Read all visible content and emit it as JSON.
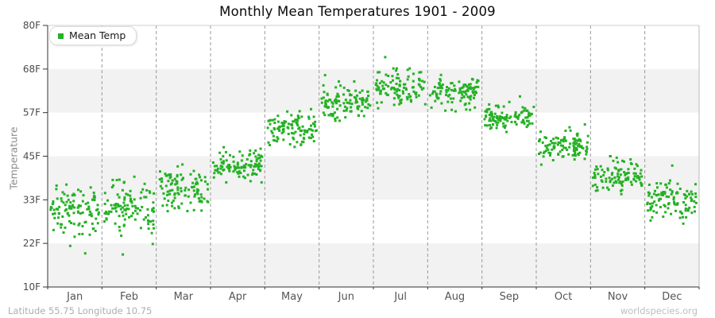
{
  "header": {
    "title": "Monthly Mean Temperatures 1901 - 2009"
  },
  "legend": {
    "label": "Mean Temp",
    "swatch_color": "#25b125"
  },
  "footer": {
    "left": "Latitude 55.75 Longitude 10.75",
    "right": "worldspecies.org"
  },
  "chart_data": {
    "type": "scatter",
    "title": "Monthly Mean Temperatures 1901 - 2009",
    "xlabel": "",
    "ylabel": "Temperature",
    "series_name": "Mean Temp",
    "unit": "F",
    "ylim": [
      10,
      80
    ],
    "y_ticks": [
      {
        "value": 80,
        "label": "80F"
      },
      {
        "value": 68.33,
        "label": "68F"
      },
      {
        "value": 56.67,
        "label": "57F"
      },
      {
        "value": 45,
        "label": "45F"
      },
      {
        "value": 33.33,
        "label": "33F"
      },
      {
        "value": 21.67,
        "label": "22F"
      },
      {
        "value": 10,
        "label": "10F"
      }
    ],
    "x_categories": [
      "Jan",
      "Feb",
      "Mar",
      "Apr",
      "May",
      "Jun",
      "Jul",
      "Aug",
      "Sep",
      "Oct",
      "Nov",
      "Dec"
    ],
    "points_per_month": 109,
    "monthly_distributions_F": [
      {
        "month": "Jan",
        "mean": 30.5,
        "sd": 2.9,
        "min": 22.5,
        "max": 38.0,
        "outliers": [
          19.0,
          21.0
        ]
      },
      {
        "month": "Feb",
        "mean": 31.0,
        "sd": 3.2,
        "min": 21.5,
        "max": 39.5,
        "outliers": [
          18.7
        ]
      },
      {
        "month": "Mar",
        "mean": 35.8,
        "sd": 2.5,
        "min": 26.5,
        "max": 43.5,
        "outliers": []
      },
      {
        "month": "Apr",
        "mean": 42.8,
        "sd": 2.0,
        "min": 38.0,
        "max": 49.0,
        "outliers": []
      },
      {
        "month": "May",
        "mean": 52.5,
        "sd": 2.3,
        "min": 47.0,
        "max": 58.5,
        "outliers": []
      },
      {
        "month": "Jun",
        "mean": 59.5,
        "sd": 2.2,
        "min": 54.5,
        "max": 65.0,
        "outliers": [
          66.7
        ]
      },
      {
        "month": "Jul",
        "mean": 63.0,
        "sd": 2.2,
        "min": 57.5,
        "max": 68.5,
        "outliers": [
          71.5
        ]
      },
      {
        "month": "Aug",
        "mean": 62.3,
        "sd": 2.1,
        "min": 57.0,
        "max": 68.0,
        "outliers": []
      },
      {
        "month": "Sep",
        "mean": 55.3,
        "sd": 1.8,
        "min": 50.0,
        "max": 59.5,
        "outliers": [
          61.0
        ]
      },
      {
        "month": "Oct",
        "mean": 48.0,
        "sd": 2.1,
        "min": 42.0,
        "max": 53.5,
        "outliers": []
      },
      {
        "month": "Nov",
        "mean": 39.8,
        "sd": 2.1,
        "min": 34.0,
        "max": 45.0,
        "outliers": []
      },
      {
        "month": "Dec",
        "mean": 33.0,
        "sd": 2.4,
        "min": 25.0,
        "max": 39.5,
        "outliers": [
          42.5
        ]
      }
    ],
    "point_color": "#25b125",
    "band_colors": [
      "#ffffff",
      "#f2f2f2"
    ],
    "grid": "dashed vertical lines at month boundaries",
    "legend_position": "top-left"
  }
}
